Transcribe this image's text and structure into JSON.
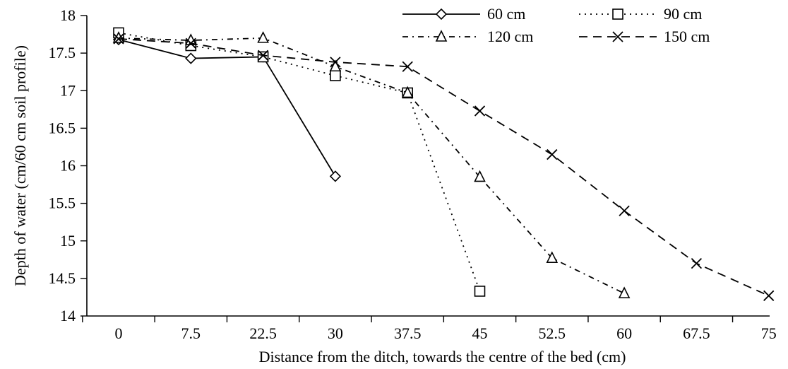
{
  "chart_data": {
    "type": "line",
    "title": "",
    "xlabel": "Distance from the ditch, towards the centre of the bed (cm)",
    "ylabel": "Depth of water (cm/60 cm soil profile)",
    "categories": [
      "0",
      "7.5",
      "22.5",
      "30",
      "37.5",
      "45",
      "52.5",
      "60",
      "67.5",
      "75"
    ],
    "ylim": [
      14,
      18
    ],
    "yticks": [
      14,
      14.5,
      15,
      15.5,
      16,
      16.5,
      17,
      17.5,
      18
    ],
    "ytick_labels": [
      "14",
      "14.5",
      "15",
      "15.5",
      "16",
      "16.5",
      "17",
      "17.5",
      "18"
    ],
    "grid": false,
    "legend_position": "top-right",
    "series": [
      {
        "name": "60 cm",
        "marker": "diamond",
        "line": "solid",
        "color": "#000000",
        "values": [
          17.68,
          17.43,
          17.45,
          15.86,
          null,
          null,
          null,
          null,
          null,
          null
        ]
      },
      {
        "name": "90 cm",
        "marker": "square",
        "line": "dotted",
        "color": "#000000",
        "values": [
          17.77,
          17.6,
          17.45,
          17.2,
          16.97,
          14.33,
          null,
          null,
          null,
          null
        ]
      },
      {
        "name": "120 cm",
        "marker": "triangle",
        "line": "dash-dot",
        "color": "#000000",
        "values": [
          17.7,
          17.67,
          17.7,
          17.32,
          16.97,
          15.85,
          14.77,
          14.3,
          null,
          null
        ]
      },
      {
        "name": "150 cm",
        "marker": "cross",
        "line": "dashed",
        "color": "#000000",
        "values": [
          17.69,
          17.63,
          17.47,
          17.38,
          17.32,
          16.73,
          16.15,
          15.4,
          14.7,
          14.27
        ]
      }
    ]
  }
}
